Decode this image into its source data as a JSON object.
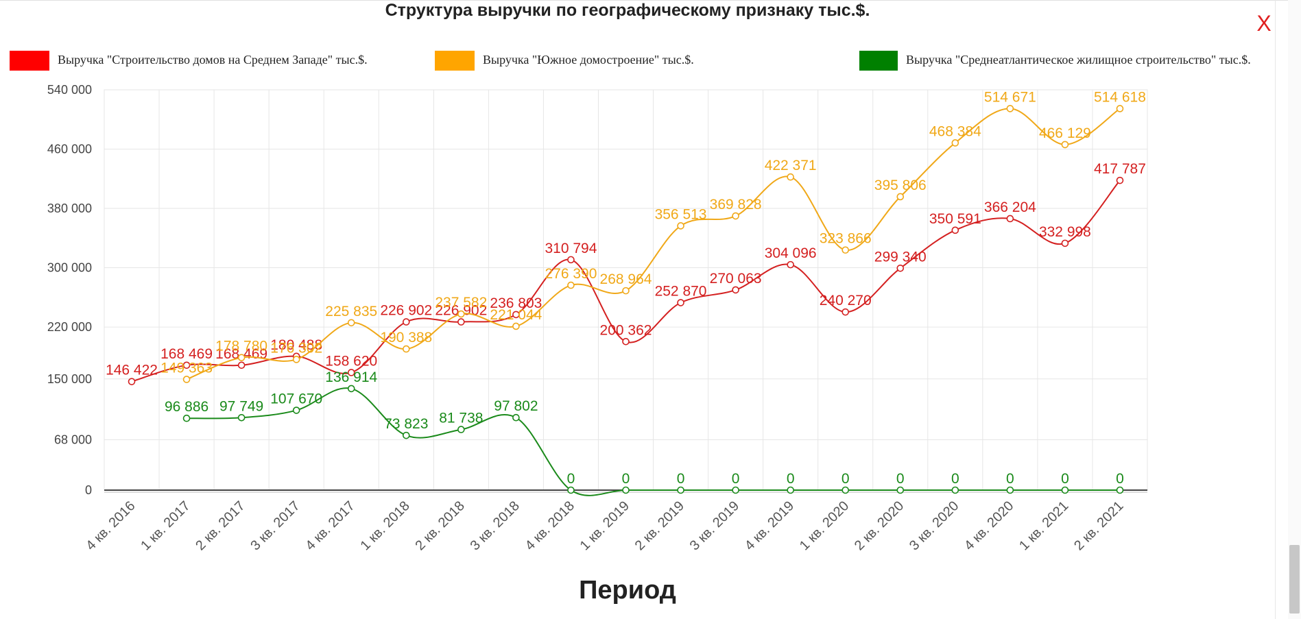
{
  "chart_data": {
    "type": "line",
    "title": "Структура выручки по географическому признаку тыс.$.",
    "xlabel": "Период",
    "ylabel": "",
    "categories": [
      "4 кв. 2016",
      "1 кв. 2017",
      "2 кв. 2017",
      "3 кв. 2017",
      "4 кв. 2017",
      "1 кв. 2018",
      "2 кв. 2018",
      "3 кв. 2018",
      "4 кв. 2018",
      "1 кв. 2019",
      "2 кв. 2019",
      "3 кв. 2019",
      "4 кв. 2019",
      "1 кв. 2020",
      "2 кв. 2020",
      "3 кв. 2020",
      "4 кв. 2020",
      "1 кв. 2021",
      "2 кв. 2021"
    ],
    "y_ticks": [
      0,
      68000,
      150000,
      220000,
      300000,
      380000,
      460000,
      540000
    ],
    "y_tick_labels": [
      "0",
      "68 000",
      "150 000",
      "220 000",
      "300 000",
      "380 000",
      "460 000",
      "540 000"
    ],
    "ylim": [
      0,
      540000
    ],
    "grid": true,
    "legend_position": "top",
    "series": [
      {
        "name": "Выручка \"Строительство домов на Среднем Западе\" тыс.$.",
        "color": "#ff0000",
        "line_color": "#d42020",
        "values": [
          146422,
          168469,
          168469,
          180488,
          158620,
          226902,
          226902,
          236803,
          310794,
          200362,
          252870,
          270063,
          304096,
          240270,
          299340,
          350591,
          366204,
          332998,
          417787
        ],
        "labels": [
          "146 422",
          "168 469",
          "168 469",
          "180 488",
          "158 620",
          "226 902",
          "226 902",
          "236 803",
          "310 794",
          "200 362",
          "252 870",
          "270 063",
          "304 096",
          "240 270",
          "299 340",
          "350 591",
          "366 204",
          "332 998",
          "417 787"
        ]
      },
      {
        "name": "Выручка \"Южное домостроение\" тыс.$.",
        "color": "#ffa500",
        "line_color": "#f0a818",
        "values": [
          null,
          149363,
          178780,
          176302,
          225835,
          190388,
          237582,
          221044,
          276390,
          268964,
          356513,
          369828,
          422371,
          323866,
          395806,
          468384,
          514671,
          466129,
          514618
        ],
        "labels": [
          "",
          "149 363",
          "178 780",
          "176 302",
          "225 835",
          "190 388",
          "237 582",
          "221 044",
          "276 390",
          "268 964",
          "356 513",
          "369 828",
          "422 371",
          "323 866",
          "395 806",
          "468 384",
          "514 671",
          "466 129",
          "514 618"
        ]
      },
      {
        "name": "Выручка \"Среднеатлантическое жилищное строительство\" тыс.$.",
        "color": "#008000",
        "line_color": "#1a8a1a",
        "values": [
          null,
          96886,
          97749,
          107670,
          136914,
          73823,
          81738,
          97802,
          0,
          0,
          0,
          0,
          0,
          0,
          0,
          0,
          0,
          0,
          0
        ],
        "labels": [
          "",
          "96 886",
          "97 749",
          "107 670",
          "136 914",
          "73 823",
          "81 738",
          "97 802",
          "0",
          "0",
          "0",
          "0",
          "0",
          "0",
          "0",
          "0",
          "0",
          "0",
          "0"
        ]
      }
    ]
  },
  "ui": {
    "close_label": "X"
  }
}
